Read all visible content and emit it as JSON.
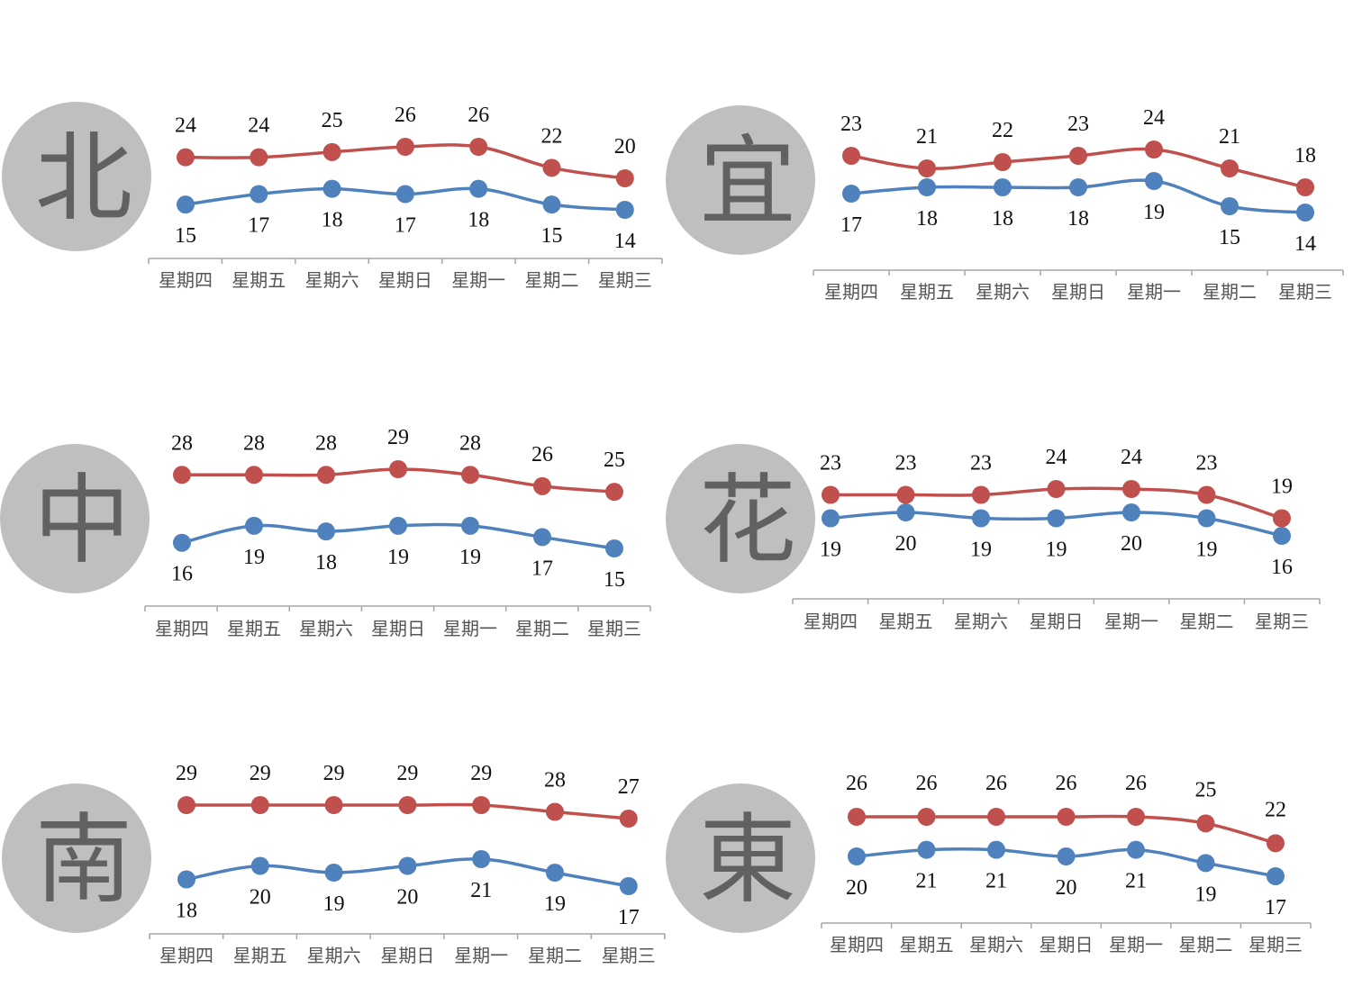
{
  "colors": {
    "high": "#c0504d",
    "low": "#4f81bd",
    "circle": "#bfbfbf",
    "axis": "#a6a6a6"
  },
  "chart_data": [
    {
      "type": "line",
      "region": "北",
      "categories": [
        "星期四",
        "星期五",
        "星期六",
        "星期日",
        "星期一",
        "星期二",
        "星期三"
      ],
      "series": [
        {
          "key": "high",
          "values": [
            24,
            24,
            25,
            26,
            26,
            22,
            20
          ]
        },
        {
          "key": "low",
          "values": [
            15,
            17,
            18,
            17,
            18,
            15,
            14
          ]
        }
      ]
    },
    {
      "type": "line",
      "region": "宜",
      "categories": [
        "星期四",
        "星期五",
        "星期六",
        "星期日",
        "星期一",
        "星期二",
        "星期三"
      ],
      "series": [
        {
          "key": "high",
          "values": [
            23,
            21,
            22,
            23,
            24,
            21,
            18
          ]
        },
        {
          "key": "low",
          "values": [
            17,
            18,
            18,
            18,
            19,
            15,
            14
          ]
        }
      ]
    },
    {
      "type": "line",
      "region": "中",
      "categories": [
        "星期四",
        "星期五",
        "星期六",
        "星期日",
        "星期一",
        "星期二",
        "星期三"
      ],
      "series": [
        {
          "key": "high",
          "values": [
            28,
            28,
            28,
            29,
            28,
            26,
            25
          ]
        },
        {
          "key": "low",
          "values": [
            16,
            19,
            18,
            19,
            19,
            17,
            15
          ]
        }
      ]
    },
    {
      "type": "line",
      "region": "花",
      "categories": [
        "星期四",
        "星期五",
        "星期六",
        "星期日",
        "星期一",
        "星期二",
        "星期三"
      ],
      "series": [
        {
          "key": "high",
          "values": [
            23,
            23,
            23,
            24,
            24,
            23,
            19
          ]
        },
        {
          "key": "low",
          "values": [
            19,
            20,
            19,
            19,
            20,
            19,
            16
          ]
        }
      ]
    },
    {
      "type": "line",
      "region": "南",
      "categories": [
        "星期四",
        "星期五",
        "星期六",
        "星期日",
        "星期一",
        "星期二",
        "星期三"
      ],
      "series": [
        {
          "key": "high",
          "values": [
            29,
            29,
            29,
            29,
            29,
            28,
            27
          ]
        },
        {
          "key": "low",
          "values": [
            18,
            20,
            19,
            20,
            21,
            19,
            17
          ]
        }
      ]
    },
    {
      "type": "line",
      "region": "東",
      "categories": [
        "星期四",
        "星期五",
        "星期六",
        "星期日",
        "星期一",
        "星期二",
        "星期三"
      ],
      "series": [
        {
          "key": "high",
          "values": [
            26,
            26,
            26,
            26,
            26,
            25,
            22
          ]
        },
        {
          "key": "low",
          "values": [
            20,
            21,
            21,
            20,
            21,
            19,
            17
          ]
        }
      ]
    }
  ]
}
